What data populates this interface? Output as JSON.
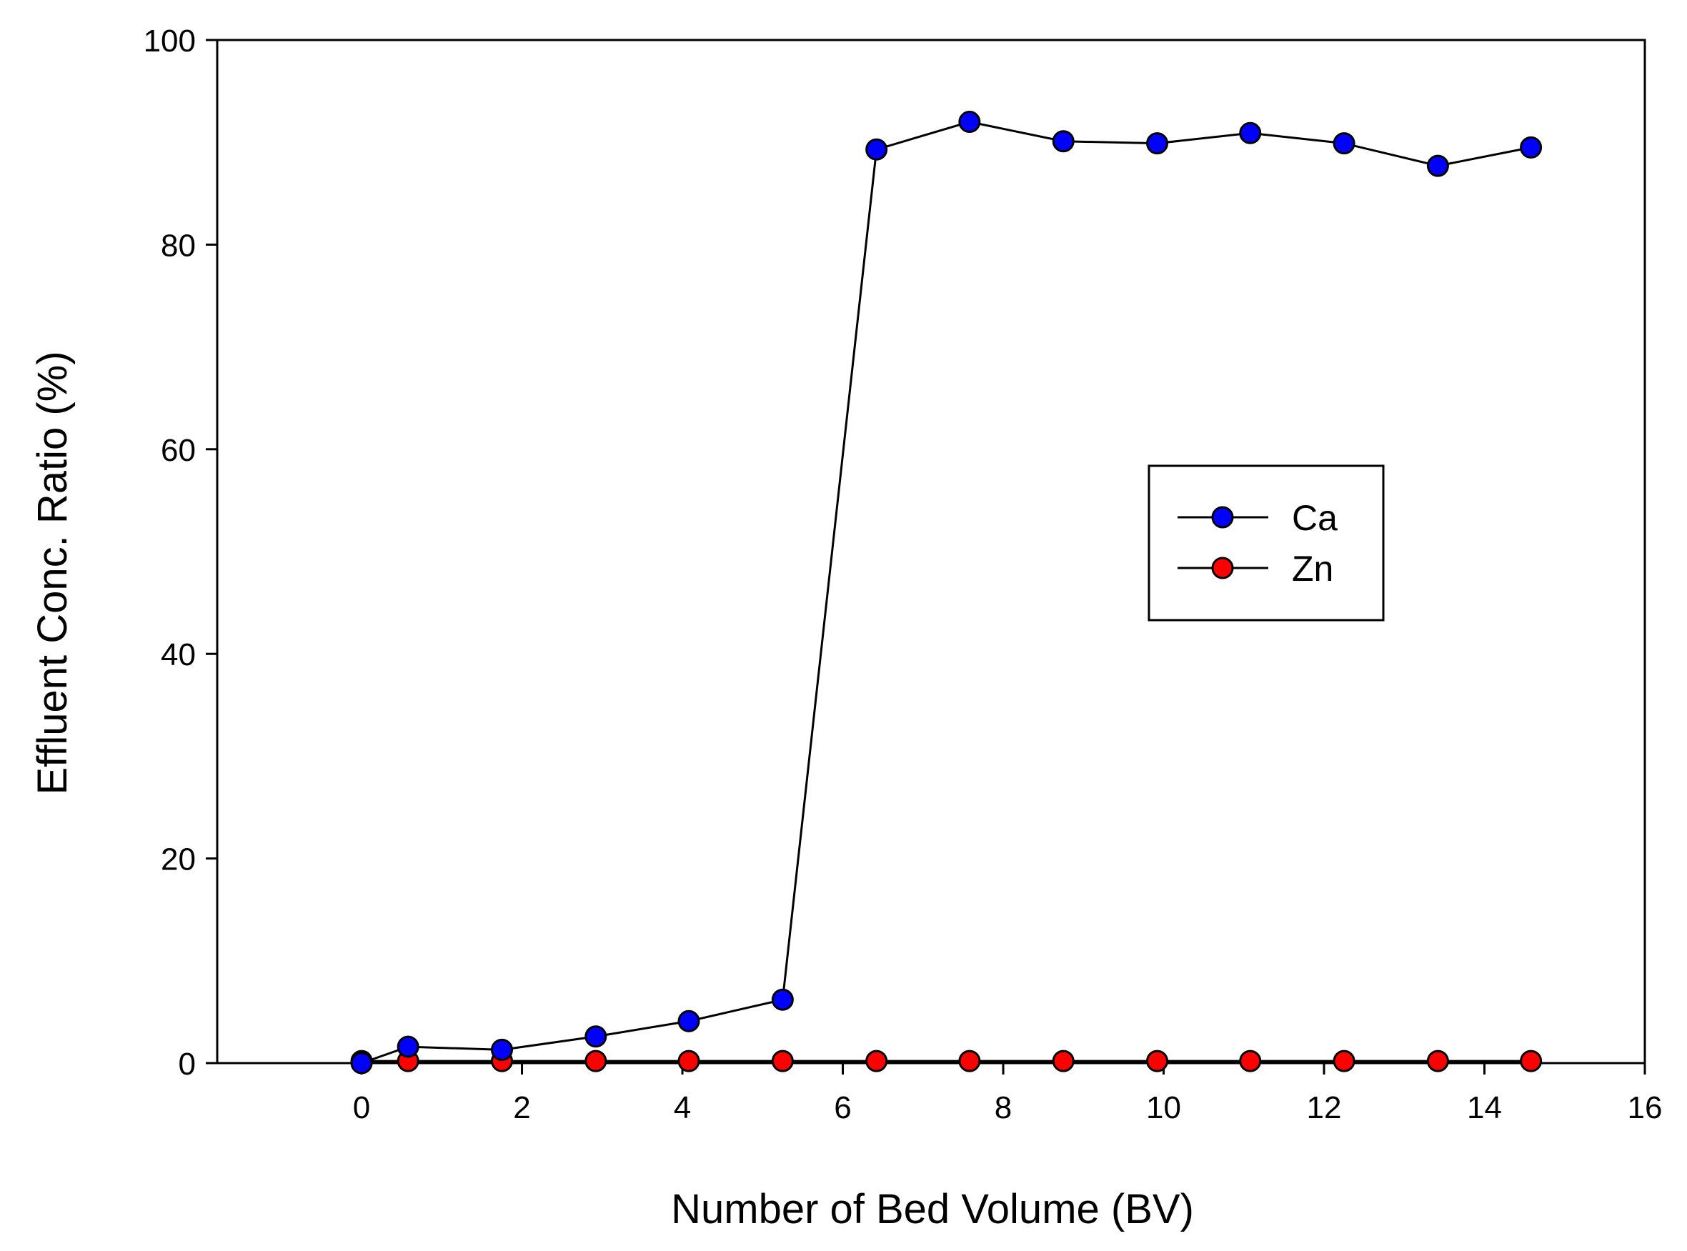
{
  "chart_data": {
    "type": "line",
    "title": "",
    "xlabel": "Number of Bed Volume (BV)",
    "ylabel": "Effluent Conc. Ratio (%)",
    "xlim": [
      -1.8,
      16
    ],
    "ylim": [
      0,
      100
    ],
    "xticks": [
      0,
      2,
      4,
      6,
      8,
      10,
      12,
      14,
      16
    ],
    "yticks": [
      0,
      20,
      40,
      60,
      80,
      100
    ],
    "xtick_labels": [
      "0",
      "2",
      "4",
      "6",
      "8",
      "10",
      "12",
      "14",
      "16"
    ],
    "ytick_labels": [
      "0",
      "20",
      "40",
      "60",
      "80",
      "100"
    ],
    "grid": false,
    "legend_position": "center-right",
    "series": [
      {
        "name": "Ca",
        "color": "#0000ff",
        "line_color": "#000000",
        "x": [
          0,
          0.58,
          1.75,
          2.92,
          4.08,
          5.25,
          6.42,
          7.58,
          8.75,
          9.92,
          11.08,
          12.25,
          13.42,
          14.58
        ],
        "y": [
          0,
          1.6,
          1.3,
          2.6,
          4.1,
          6.2,
          89.3,
          92.0,
          90.1,
          89.9,
          90.9,
          89.9,
          87.7,
          89.5
        ]
      },
      {
        "name": "Zn",
        "color": "#ff0000",
        "line_color": "#000000",
        "x": [
          0,
          0.58,
          1.75,
          2.92,
          4.08,
          5.25,
          6.42,
          7.58,
          8.75,
          9.92,
          11.08,
          12.25,
          13.42,
          14.58
        ],
        "y": [
          0.2,
          0.2,
          0.2,
          0.2,
          0.2,
          0.2,
          0.2,
          0.2,
          0.2,
          0.2,
          0.2,
          0.2,
          0.2,
          0.2
        ]
      }
    ]
  }
}
